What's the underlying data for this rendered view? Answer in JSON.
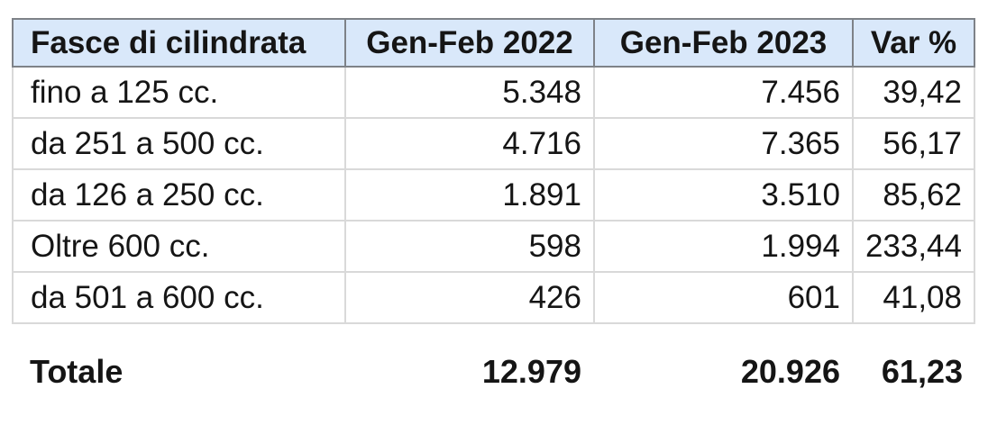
{
  "table": {
    "headers": [
      "Fasce di cilindrata",
      "Gen-Feb 2022",
      "Gen-Feb 2023",
      "Var %"
    ],
    "rows": [
      [
        "fino a 125 cc.",
        "5.348",
        "7.456",
        "39,42"
      ],
      [
        "da 251 a 500 cc.",
        "4.716",
        "7.365",
        "56,17"
      ],
      [
        "da 126 a 250 cc.",
        "1.891",
        "3.510",
        "85,62"
      ],
      [
        "Oltre 600 cc.",
        "598",
        "1.994",
        "233,44"
      ],
      [
        "da 501 a 600 cc.",
        "426",
        "601",
        "41,08"
      ]
    ],
    "total_row": [
      "Totale",
      "12.979",
      "20.926",
      "61,23"
    ]
  },
  "colors": {
    "header_background": "#d9e8fa",
    "header_border": "#7e8288",
    "body_border": "#d9d9d9",
    "text": "#151515",
    "page_background": "#ffffff"
  }
}
